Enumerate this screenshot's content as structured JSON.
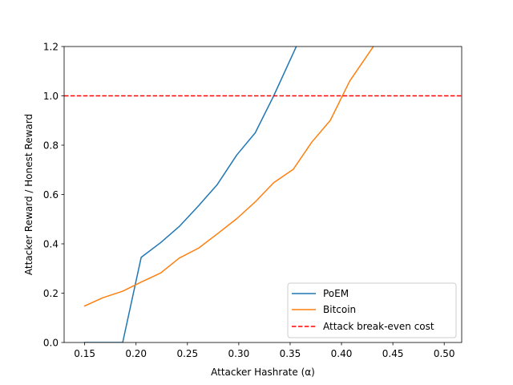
{
  "chart_data": {
    "type": "line",
    "xlabel": "Attacker Hashrate (α)",
    "ylabel": "Attacker Reward / Honest Reward",
    "xlim": [
      0.13,
      0.517
    ],
    "ylim": [
      0.0,
      1.2
    ],
    "xticks": [
      0.15,
      0.2,
      0.25,
      0.3,
      0.35,
      0.4,
      0.45,
      0.5
    ],
    "xtick_labels": [
      "0.15",
      "0.20",
      "0.25",
      "0.30",
      "0.35",
      "0.40",
      "0.45",
      "0.50"
    ],
    "yticks": [
      0.0,
      0.2,
      0.4,
      0.6,
      0.8,
      1.0,
      1.2
    ],
    "ytick_labels": [
      "0.0",
      "0.2",
      "0.4",
      "0.6",
      "0.8",
      "1.0",
      "1.2"
    ],
    "grid": false,
    "legend_position": "bottom-right",
    "series": [
      {
        "name": "PoEM",
        "color": "#1f77b4",
        "x": [
          0.15,
          0.168,
          0.187,
          0.205,
          0.224,
          0.242,
          0.261,
          0.279,
          0.298,
          0.316,
          0.334,
          0.356
        ],
        "y": [
          0.0,
          0.0,
          0.0,
          0.345,
          0.405,
          0.47,
          0.555,
          0.64,
          0.76,
          0.85,
          1.0,
          1.2
        ]
      },
      {
        "name": "Bitcoin",
        "color": "#ff7f0e",
        "x": [
          0.15,
          0.168,
          0.187,
          0.205,
          0.224,
          0.242,
          0.261,
          0.279,
          0.298,
          0.316,
          0.334,
          0.353,
          0.371,
          0.389,
          0.408,
          0.431
        ],
        "y": [
          0.148,
          0.182,
          0.208,
          0.245,
          0.282,
          0.342,
          0.383,
          0.44,
          0.502,
          0.57,
          0.648,
          0.702,
          0.812,
          0.9,
          1.06,
          1.2
        ]
      }
    ],
    "reference_lines": [
      {
        "name": "Attack break-even cost",
        "orientation": "horizontal",
        "value": 1.0,
        "color": "#ff0000",
        "style": "dashed"
      }
    ]
  }
}
